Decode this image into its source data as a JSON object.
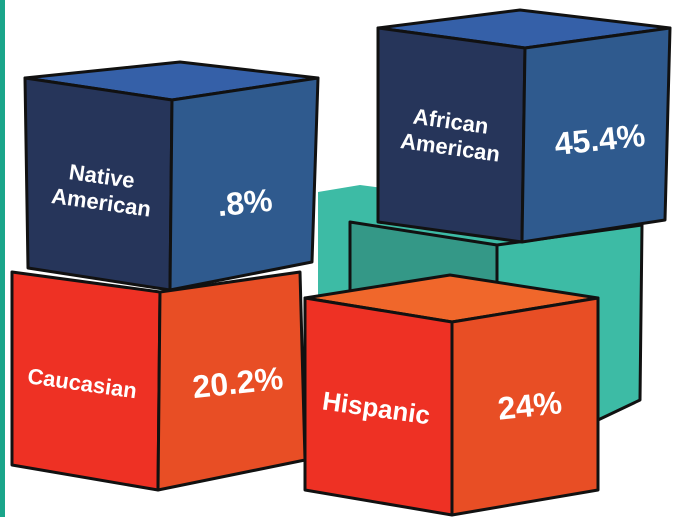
{
  "blocks": [
    {
      "label": "Native American",
      "value": ".8%"
    },
    {
      "label": "African American",
      "value": "45.4%"
    },
    {
      "label": "Caucasian",
      "value": "20.2%"
    },
    {
      "label": "Hispanic",
      "value": "24%"
    }
  ]
}
